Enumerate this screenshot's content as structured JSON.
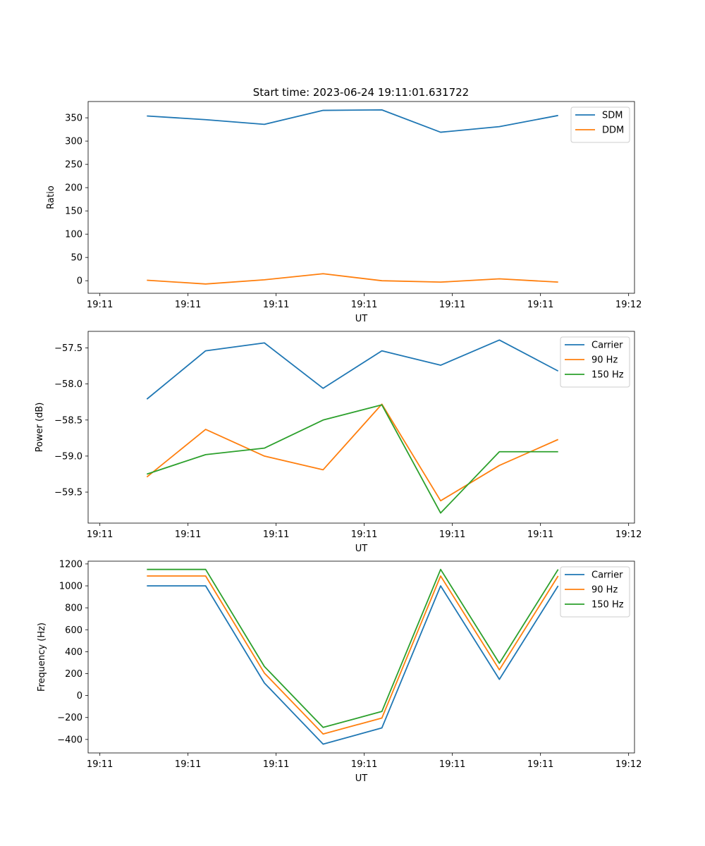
{
  "title": "Start time: 2023-06-24 19:11:01.631722",
  "chart_data": [
    {
      "type": "line",
      "xlabel": "UT",
      "ylabel": "Ratio",
      "x_ticklabels": [
        "19:11",
        "19:11",
        "19:11",
        "19:11",
        "19:11",
        "19:11",
        "19:12"
      ],
      "yticks": [
        0,
        50,
        100,
        150,
        200,
        250,
        300,
        350
      ],
      "ylim": [
        -27,
        385
      ],
      "grid": false,
      "legend_position": "upper right",
      "x": [
        1,
        2,
        3,
        4,
        5,
        6,
        7,
        8
      ],
      "series": [
        {
          "name": "SDM",
          "color": "#1f77b4",
          "values": [
            354,
            346,
            336,
            366,
            367,
            319,
            331,
            355
          ]
        },
        {
          "name": "DDM",
          "color": "#ff7f0e",
          "values": [
            1,
            -7,
            2,
            15,
            0,
            -3,
            4,
            -3
          ]
        }
      ]
    },
    {
      "type": "line",
      "xlabel": "UT",
      "ylabel": "Power (dB)",
      "x_ticklabels": [
        "19:11",
        "19:11",
        "19:11",
        "19:11",
        "19:11",
        "19:11",
        "19:12"
      ],
      "yticks": [
        -57.5,
        -58.0,
        -58.5,
        -59.0,
        -59.5
      ],
      "ytick_labels": [
        "−57.5",
        "−58.0",
        "−58.5",
        "−59.0",
        "−59.5"
      ],
      "ylim": [
        -59.93,
        -57.27
      ],
      "grid": false,
      "legend_position": "upper right",
      "x": [
        1,
        2,
        3,
        4,
        5,
        6,
        7,
        8
      ],
      "series": [
        {
          "name": "Carrier",
          "color": "#1f77b4",
          "values": [
            -58.21,
            -57.54,
            -57.43,
            -58.06,
            -57.54,
            -57.74,
            -57.39,
            -57.82
          ]
        },
        {
          "name": "90 Hz",
          "color": "#ff7f0e",
          "values": [
            -59.29,
            -58.63,
            -59.0,
            -59.19,
            -58.28,
            -59.62,
            -59.13,
            -58.77
          ]
        },
        {
          "name": "150 Hz",
          "color": "#2ca02c",
          "values": [
            -59.25,
            -58.98,
            -58.89,
            -58.5,
            -58.29,
            -59.79,
            -58.94,
            -58.94
          ]
        }
      ]
    },
    {
      "type": "line",
      "xlabel": "UT",
      "ylabel": "Frequency (Hz)",
      "x_ticklabels": [
        "19:11",
        "19:11",
        "19:11",
        "19:11",
        "19:11",
        "19:11",
        "19:12"
      ],
      "yticks": [
        1200,
        1000,
        800,
        600,
        400,
        200,
        0,
        -200,
        -400
      ],
      "ytick_labels": [
        "1200",
        "1000",
        "800",
        "600",
        "400",
        "200",
        "0",
        "−200",
        "−400"
      ],
      "ylim": [
        -523,
        1225
      ],
      "grid": false,
      "legend_position": "upper right",
      "x": [
        1,
        2,
        3,
        4,
        5,
        6,
        7,
        8
      ],
      "series": [
        {
          "name": "Carrier",
          "color": "#1f77b4",
          "values": [
            1000,
            1000,
            115,
            -443,
            -295,
            1000,
            148,
            1000
          ]
        },
        {
          "name": "90 Hz",
          "color": "#ff7f0e",
          "values": [
            1090,
            1090,
            205,
            -350,
            -205,
            1090,
            235,
            1090
          ]
        },
        {
          "name": "150 Hz",
          "color": "#2ca02c",
          "values": [
            1150,
            1150,
            265,
            -290,
            -145,
            1150,
            295,
            1150
          ]
        }
      ]
    }
  ]
}
